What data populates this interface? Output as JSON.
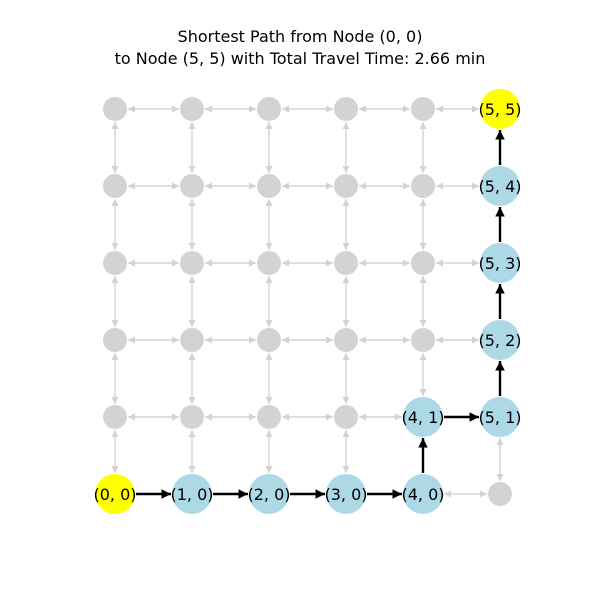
{
  "title": {
    "line1": "Shortest Path from Node (0, 0)",
    "line2": "to Node (5, 5) with Total Travel Time: 2.66 min"
  },
  "graph": {
    "grid_size": 6,
    "start": [
      0,
      0
    ],
    "end": [
      5,
      5
    ],
    "path": [
      [
        0,
        0
      ],
      [
        1,
        0
      ],
      [
        2,
        0
      ],
      [
        3,
        0
      ],
      [
        4,
        0
      ],
      [
        4,
        1
      ],
      [
        5,
        1
      ],
      [
        5,
        2
      ],
      [
        5,
        3
      ],
      [
        5,
        4
      ],
      [
        5,
        5
      ]
    ],
    "colors": {
      "endpoint": "#ffff00",
      "path_node": "#add8e6",
      "other_node": "#d3d3d3",
      "path_edge": "#000000",
      "other_edge": "#d3d3d3"
    }
  }
}
